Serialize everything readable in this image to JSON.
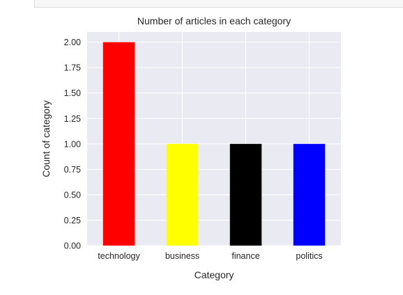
{
  "chart_data": {
    "type": "bar",
    "title": "Number of articles in each category",
    "xlabel": "Category",
    "ylabel": "Count of category",
    "categories": [
      "technology",
      "business",
      "finance",
      "politics"
    ],
    "values": [
      2,
      1,
      1,
      1
    ],
    "colors": [
      "#ff0000",
      "#ffff00",
      "#000000",
      "#0000ff"
    ],
    "ylim": [
      0,
      2.1
    ],
    "yticks": [
      "0.00",
      "0.25",
      "0.50",
      "0.75",
      "1.00",
      "1.25",
      "1.50",
      "1.75",
      "2.00"
    ],
    "grid": true,
    "plot_background": "#eaeaf2",
    "grid_color": "#ffffff"
  }
}
